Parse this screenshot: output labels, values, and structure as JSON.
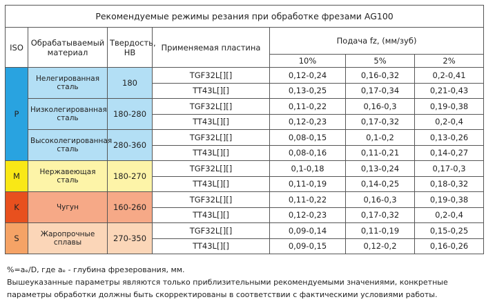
{
  "table": {
    "title": "Рекомендуемые режимы резания при обработке фрезами AG100",
    "headers": {
      "iso": "ISO",
      "material": "Обрабатываемый материал",
      "hardness": "Твердость, НВ",
      "plate": "Применяемая пластина",
      "feed": "Подача fz, (мм/зуб)",
      "feed_columns": [
        "10%",
        "5%",
        "2%"
      ]
    },
    "groups": [
      {
        "iso": "P",
        "materials": [
          {
            "name": "Нелегированная сталь",
            "hardness": "180",
            "rows": [
              {
                "plate": "TGF32L[][]",
                "values": [
                  "0,12-0,24",
                  "0,16-0,32",
                  "0,2-0,41"
                ]
              },
              {
                "plate": "TT43L[][]",
                "values": [
                  "0,13-0,25",
                  "0,17-0,34",
                  "0,21-0,43"
                ]
              }
            ]
          },
          {
            "name": "Низколегированная сталь",
            "hardness": "180-280",
            "rows": [
              {
                "plate": "TGF32L[][]",
                "values": [
                  "0,11-0,22",
                  "0,16-0,3",
                  "0,19-0,38"
                ]
              },
              {
                "plate": "TT43L[][]",
                "values": [
                  "0,12-0,23",
                  "0,17-0,32",
                  "0,2-0,4"
                ]
              }
            ]
          },
          {
            "name": "Высоколегированная сталь",
            "hardness": "280-360",
            "rows": [
              {
                "plate": "TGF32L[][]",
                "values": [
                  "0,08-0,15",
                  "0,1-0,2",
                  "0,13-0,26"
                ]
              },
              {
                "plate": "TT43L[][]",
                "values": [
                  "0,08-0,16",
                  "0,11-0,21",
                  "0,14-0,27"
                ]
              }
            ]
          }
        ]
      },
      {
        "iso": "M",
        "materials": [
          {
            "name": "Нержавеющая сталь",
            "hardness": "180-270",
            "rows": [
              {
                "plate": "TGF32L[][]",
                "values": [
                  "0,1-0,18",
                  "0,13-0,24",
                  "0,17-0,3"
                ]
              },
              {
                "plate": "TT43L[][]",
                "values": [
                  "0,11-0,19",
                  "0,14-0,25",
                  "0,18-0,32"
                ]
              }
            ]
          }
        ]
      },
      {
        "iso": "K",
        "materials": [
          {
            "name": "Чугун",
            "hardness": "160-260",
            "rows": [
              {
                "plate": "TGF32L[][]",
                "values": [
                  "0,11-0,22",
                  "0,16-0,3",
                  "0,19-0,38"
                ]
              },
              {
                "plate": "TT43L[][]",
                "values": [
                  "0,12-0,23",
                  "0,17-0,32",
                  "0,2-0,4"
                ]
              }
            ]
          }
        ]
      },
      {
        "iso": "S",
        "materials": [
          {
            "name": "Жаропрочные сплавы",
            "hardness": "270-350",
            "rows": [
              {
                "plate": "TGF32L[][]",
                "values": [
                  "0,09-0,14",
                  "0,11-0,19",
                  "0,15-0,25"
                ]
              },
              {
                "plate": "TT43L[][]",
                "values": [
                  "0,09-0,15",
                  "0,12-0,2",
                  "0,16-0,26"
                ]
              }
            ]
          }
        ]
      }
    ]
  },
  "notes": [
    "%=aₑ/D, где aₑ - глубина фрезерования, мм.",
    "Вышеуказанные параметры являются только приблизительными рекомендуемыми значениями, конкретные параметры обработки должны быть скорректированы в соответствии с фактическими условиями работы."
  ]
}
